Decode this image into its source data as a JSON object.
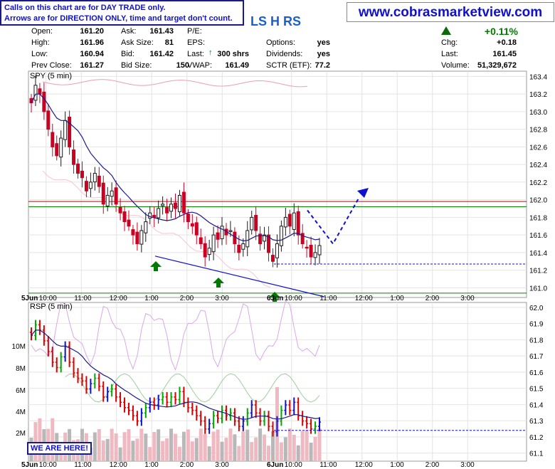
{
  "notice": {
    "line1": "Calls on this chart are for DAY TRADE only.",
    "line2": "Arrows are for DIRECTION ONLY, time and target don't count."
  },
  "site": "www.cobrasmarketview.com",
  "ticker_title": "LS H RS",
  "quote": {
    "open_label": "Open:",
    "open": "161.20",
    "high_label": "High:",
    "high": "161.96",
    "low_label": "Low:",
    "low": "160.94",
    "prev_label": "Prev Close:",
    "prev": "161.27",
    "ask_label": "Ask:",
    "ask": "161.43",
    "asksize_label": "Ask Size:",
    "asksize": "81",
    "bid_label": "Bid:",
    "bid": "161.42",
    "bidsize_label": "Bid Size:",
    "bidsize": "150",
    "pe_label": "P/E:",
    "pe": "",
    "eps_label": "EPS:",
    "eps": "",
    "last_label": "Last:",
    "last_trade": "300 shrs",
    "vwap_label": "VWAP:",
    "vwap": "161.49",
    "options_label": "Options:",
    "options": "yes",
    "dividends_label": "Dividends:",
    "dividends": "yes",
    "sctr_label": "SCTR (ETF):",
    "sctr": "77.2",
    "change_pct": "+0.11%",
    "chg_label": "Chg:",
    "chg": "+0.18",
    "last2_label": "Last:",
    "last": "161.45",
    "volume_label": "Volume:",
    "volume": "51,329,672"
  },
  "colors": {
    "up": "#00aa00",
    "down": "#dd0000",
    "blue": "#1010d0",
    "arrow_green": "#007a00"
  },
  "here_label": "WE ARE HERE!",
  "chart_data": [
    {
      "type": "candlestick",
      "title": "SPY (5 min)",
      "y_ticks": [
        161.0,
        161.2,
        161.4,
        161.6,
        161.8,
        162.0,
        162.2,
        162.4,
        162.6,
        162.8,
        163.0,
        163.2,
        163.4
      ],
      "ylim": [
        160.89,
        163.46
      ],
      "x_ticks": [
        "5Jun",
        "10:00",
        "11:00",
        "12:00",
        "1:00",
        "2:00",
        "3:00",
        "6Jun",
        "10:00",
        "11:00",
        "12:00",
        "1:00",
        "2:00",
        "3:00"
      ],
      "close_path": [
        163.1,
        163.3,
        163.2,
        163.0,
        162.8,
        162.6,
        162.5,
        162.7,
        162.9,
        162.6,
        162.4,
        162.3,
        162.25,
        162.1,
        162.2,
        162.3,
        162.15,
        161.95,
        162.05,
        162.1,
        161.95,
        161.85,
        161.75,
        161.7,
        161.6,
        161.5,
        161.65,
        161.75,
        161.85,
        161.8,
        161.9,
        161.95,
        161.85,
        161.95,
        161.9,
        162.05,
        161.85,
        161.75,
        161.7,
        161.6,
        161.5,
        161.35,
        161.45,
        161.6,
        161.55,
        161.7,
        161.6,
        161.65,
        161.5,
        161.4,
        161.5,
        161.65,
        161.8,
        161.65,
        161.5,
        161.6,
        161.4,
        161.3,
        161.5,
        161.7,
        161.8,
        161.7,
        161.85,
        161.6,
        161.5,
        161.45,
        161.35,
        161.4,
        161.48
      ],
      "annotations": [
        {
          "kind": "horizontal",
          "value": 161.98,
          "color": "#cc0000"
        },
        {
          "kind": "horizontal",
          "value": 161.92,
          "color": "#008800"
        },
        {
          "kind": "horizontal",
          "value": 160.94,
          "color": "#008800"
        },
        {
          "kind": "horizontal_dashed",
          "value": 161.27,
          "color": "#1010d0"
        },
        {
          "kind": "trendline",
          "from": [
            "1:00",
            161.36
          ],
          "to": [
            "6Jun 11:00",
            160.9
          ],
          "color": "#1010d0"
        },
        {
          "kind": "projection_arrow",
          "points": [
            [
              "6Jun 10:30",
              161.88
            ],
            [
              "6Jun 11:00",
              161.5
            ],
            [
              "6Jun 11:50",
              162.03
            ]
          ],
          "color": "#1010d0",
          "style": "dashed"
        },
        {
          "kind": "up_arrows",
          "at": [
            "1:00",
            "2:30",
            "6Jun 10:00"
          ],
          "color": "#007a00"
        }
      ]
    },
    {
      "type": "bar",
      "title": "RSP (5 min)",
      "y_ticks": [
        61.1,
        61.2,
        61.3,
        61.4,
        61.5,
        61.6,
        61.7,
        61.8,
        61.9,
        62.0
      ],
      "volume_ticks": [
        "2M",
        "4M",
        "6M",
        "8M",
        "10M"
      ],
      "x_ticks": [
        "5Jun",
        "10:00",
        "11:00",
        "12:00",
        "1:00",
        "2:00",
        "3:00",
        "6Jun",
        "10:00",
        "11:00",
        "12:00",
        "1:00",
        "2:00",
        "3:00"
      ],
      "last_value_dashed": 61.24
    }
  ]
}
